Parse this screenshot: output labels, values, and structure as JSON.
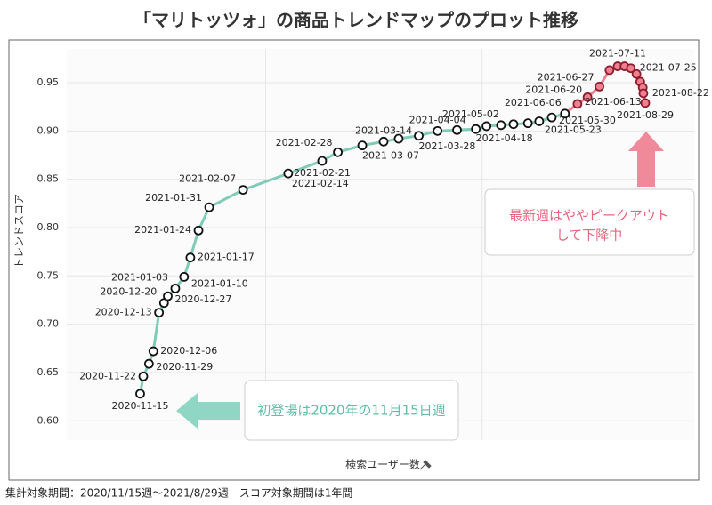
{
  "chart_data": {
    "type": "scatter",
    "title": "「マリトッツォ」の商品トレンドマップのプロット推移",
    "x_label": "検索ユーザー数",
    "y_label": "トレンドスコア",
    "footer": "集計対象期間：2020/11/15週〜2021/8/29週　スコア対象期間は1年間",
    "annotations": [
      "初登場は2020年の11月15日週",
      "最新週はややピークアウト",
      "して下降中"
    ],
    "xlim": [
      0,
      100
    ],
    "xticks": [
      31.7,
      66.2
    ],
    "ylim": [
      0.58,
      0.985
    ],
    "yticks": [
      {
        "value": 0.6,
        "label": "0.60"
      },
      0.65,
      {
        "value": 0.7,
        "label": "0.70"
      },
      0.75,
      {
        "value": 0.8,
        "label": "0.80"
      },
      0.85,
      {
        "value": 0.9,
        "label": "0.90"
      },
      0.95
    ],
    "grid": true,
    "color": "#7fcbb8",
    "highlight_color": "#f07f92",
    "highlight_from": 30,
    "x": [
      11.7,
      12.2,
      13.1,
      13.8,
      14.7,
      15.5,
      16.1,
      17.3,
      18.7,
      19.7,
      21.0,
      22.7,
      28.1,
      35.3,
      40.7,
      43.2,
      47.1,
      50.5,
      52.9,
      56.1,
      59.1,
      62.2,
      65.2,
      66.9,
      69.2,
      71.2,
      73.5,
      75.3,
      77.3,
      79.4,
      81.4,
      83.0,
      84.9,
      86.5,
      87.8,
      88.9,
      89.9,
      90.8,
      91.4,
      91.8,
      91.9,
      92.2
    ],
    "values": [
      0.628,
      0.646,
      0.659,
      0.672,
      0.712,
      0.722,
      0.729,
      0.737,
      0.749,
      0.769,
      0.797,
      0.821,
      0.839,
      0.856,
      0.869,
      0.878,
      0.885,
      0.889,
      0.892,
      0.895,
      0.9,
      0.901,
      0.902,
      0.905,
      0.906,
      0.907,
      0.908,
      0.91,
      0.914,
      0.918,
      0.928,
      0.935,
      0.946,
      0.963,
      0.967,
      0.967,
      0.965,
      0.959,
      0.951,
      0.945,
      0.939,
      0.929
    ],
    "labels": [
      "2020-11-15",
      "2020-11-22",
      "2020-11-29",
      "2020-12-06",
      "2020-12-13",
      "2020-12-20",
      "2020-12-27",
      "2021-01-03",
      "2021-01-10",
      "2021-01-17",
      "2021-01-24",
      "2021-01-31",
      "2021-02-07",
      "2021-02-14",
      "2021-02-21",
      "2021-02-28",
      "2021-03-07",
      "2021-03-14",
      null,
      "2021-03-28",
      "2021-04-04",
      null,
      "2021-04-18",
      null,
      "2021-05-02",
      null,
      null,
      "2021-05-23",
      "2021-05-30",
      "2021-06-06",
      "2021-06-13",
      "2021-06-20",
      "2021-06-27",
      null,
      "2021-07-11",
      null,
      "2021-07-25",
      null,
      null,
      null,
      "2021-08-22",
      "2021-08-29"
    ]
  }
}
